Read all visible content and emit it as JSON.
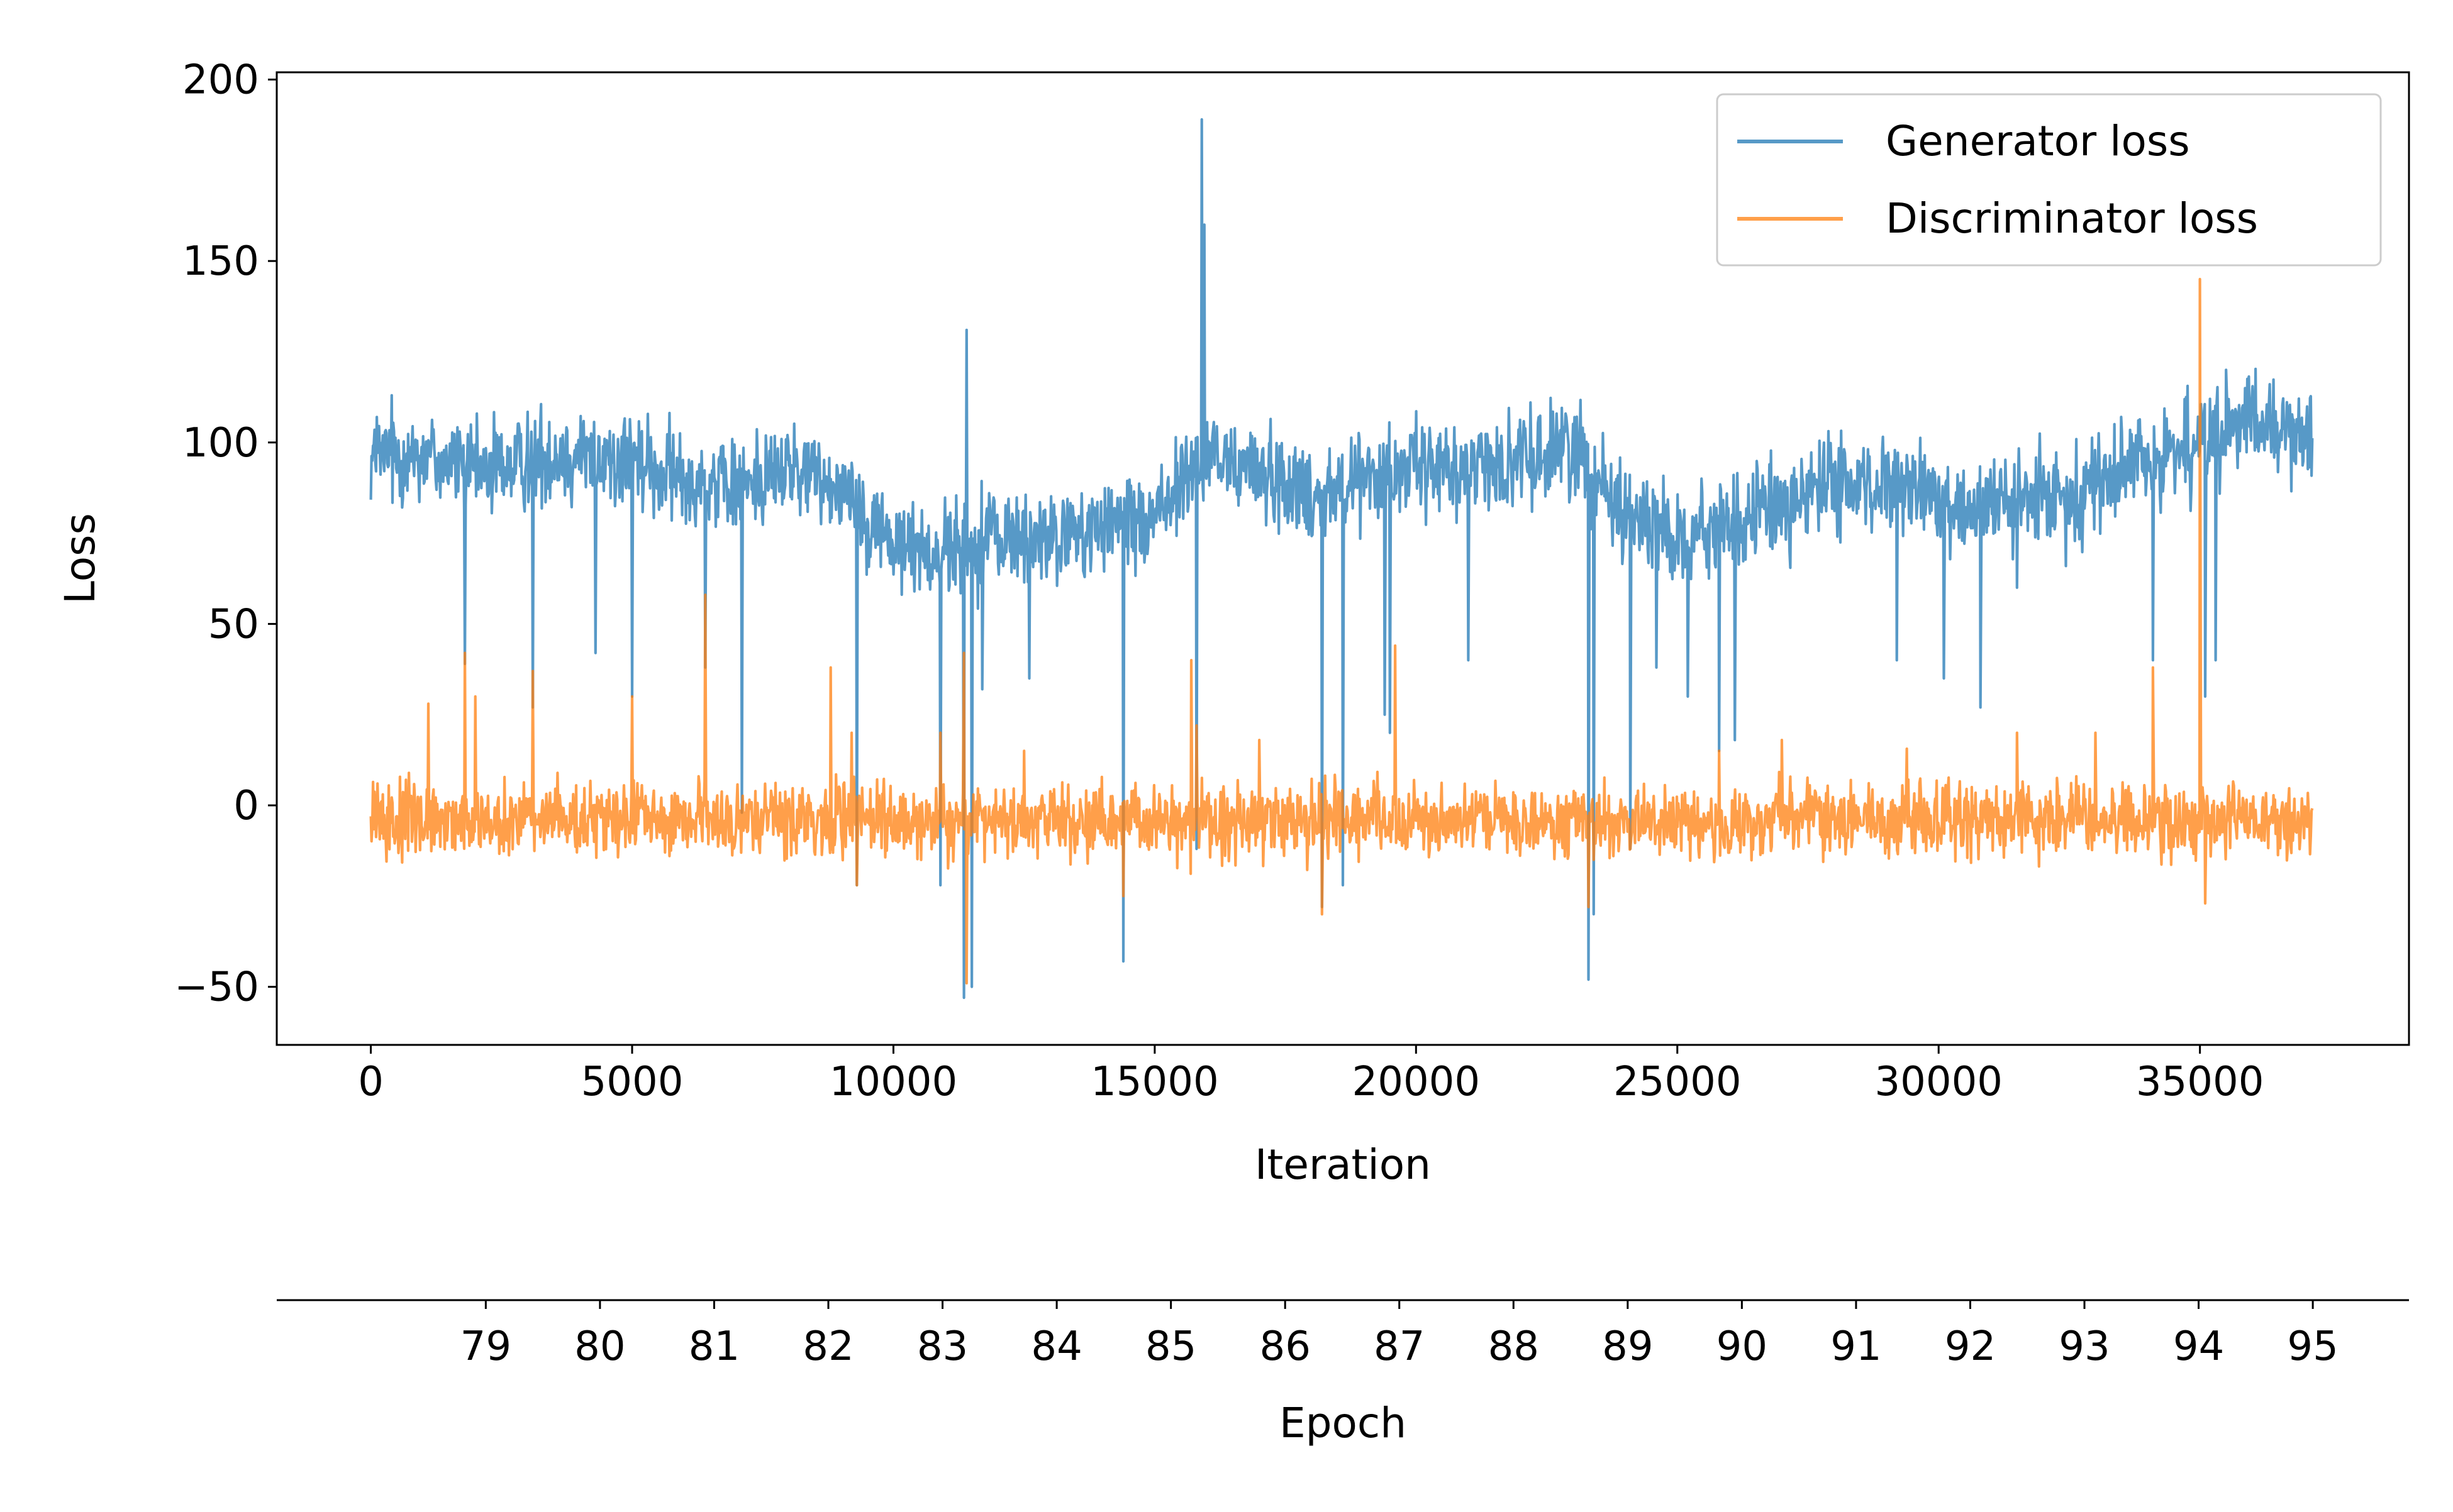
{
  "chart_data": {
    "type": "line",
    "xlabel": "Iteration",
    "ylabel": "Loss",
    "xlim": [
      -1800,
      39000
    ],
    "ylim": [
      -66,
      202
    ],
    "x_ticks": [
      0,
      5000,
      10000,
      15000,
      20000,
      25000,
      30000,
      35000
    ],
    "y_ticks": [
      -50,
      0,
      50,
      100,
      150,
      200
    ],
    "x_tick_labels": [
      "0",
      "5000",
      "10000",
      "15000",
      "20000",
      "25000",
      "30000",
      "35000"
    ],
    "y_tick_labels": [
      "−50",
      "0",
      "50",
      "100",
      "150",
      "200"
    ],
    "grid": false,
    "legend_position": "upper-right",
    "series": [
      {
        "name": "Generator loss",
        "color": "#1f77b4",
        "opacity": 0.75,
        "x_range": [
          0,
          37150
        ],
        "baseline": [
          [
            0,
            96
          ],
          [
            1000,
            97
          ],
          [
            2000,
            92
          ],
          [
            3000,
            95
          ],
          [
            4000,
            97
          ],
          [
            5000,
            94
          ],
          [
            6000,
            90
          ],
          [
            7000,
            88
          ],
          [
            8000,
            93
          ],
          [
            9000,
            88
          ],
          [
            10000,
            72
          ],
          [
            11000,
            70
          ],
          [
            12000,
            74
          ],
          [
            13000,
            73
          ],
          [
            14000,
            76
          ],
          [
            15000,
            80
          ],
          [
            16000,
            96
          ],
          [
            17000,
            92
          ],
          [
            18000,
            86
          ],
          [
            19000,
            90
          ],
          [
            20000,
            93
          ],
          [
            21000,
            93
          ],
          [
            22000,
            95
          ],
          [
            23000,
            100
          ],
          [
            24000,
            80
          ],
          [
            25000,
            75
          ],
          [
            26000,
            76
          ],
          [
            27000,
            83
          ],
          [
            28000,
            88
          ],
          [
            29000,
            88
          ],
          [
            30000,
            84
          ],
          [
            31000,
            82
          ],
          [
            32000,
            84
          ],
          [
            33000,
            89
          ],
          [
            34000,
            95
          ],
          [
            35000,
            100
          ],
          [
            36000,
            105
          ],
          [
            37150,
            102
          ]
        ],
        "noise_amplitude": 8,
        "spikes": [
          [
            15800,
            174
          ],
          [
            15900,
            189
          ],
          [
            15950,
            160
          ],
          [
            11400,
            131
          ],
          [
            34100,
            126
          ],
          [
            35500,
            120
          ],
          [
            1800,
            39
          ],
          [
            3100,
            27
          ],
          [
            4300,
            42
          ],
          [
            5000,
            30
          ],
          [
            6400,
            38
          ],
          [
            7100,
            -2
          ],
          [
            9300,
            -22
          ],
          [
            10900,
            -22
          ],
          [
            11350,
            -53
          ],
          [
            11500,
            -50
          ],
          [
            11700,
            32
          ],
          [
            12600,
            35
          ],
          [
            14400,
            -43
          ],
          [
            15800,
            -12
          ],
          [
            18200,
            -28
          ],
          [
            18600,
            -22
          ],
          [
            19400,
            25
          ],
          [
            19500,
            20
          ],
          [
            21000,
            40
          ],
          [
            23300,
            -48
          ],
          [
            23400,
            -30
          ],
          [
            24100,
            -12
          ],
          [
            24600,
            38
          ],
          [
            25200,
            30
          ],
          [
            25800,
            15
          ],
          [
            26100,
            18
          ],
          [
            29200,
            40
          ],
          [
            30100,
            35
          ],
          [
            30800,
            27
          ],
          [
            31500,
            60
          ],
          [
            34100,
            40
          ],
          [
            35100,
            30
          ],
          [
            35300,
            40
          ]
        ]
      },
      {
        "name": "Discriminator loss",
        "color": "#ff7f0e",
        "opacity": 0.75,
        "x_range": [
          0,
          37150
        ],
        "baseline": [
          [
            0,
            -4
          ],
          [
            37150,
            -4
          ]
        ],
        "noise_amplitude": 6,
        "spikes": [
          [
            1800,
            42
          ],
          [
            2000,
            30
          ],
          [
            1100,
            28
          ],
          [
            3100,
            37
          ],
          [
            5000,
            30
          ],
          [
            6400,
            58
          ],
          [
            8800,
            38
          ],
          [
            9200,
            20
          ],
          [
            11350,
            42
          ],
          [
            11400,
            -49
          ],
          [
            14400,
            -25
          ],
          [
            15700,
            40
          ],
          [
            15800,
            22
          ],
          [
            18200,
            -30
          ],
          [
            19600,
            44
          ],
          [
            23300,
            -28
          ],
          [
            23400,
            -15
          ],
          [
            24100,
            -12
          ],
          [
            25800,
            15
          ],
          [
            33000,
            20
          ],
          [
            34100,
            38
          ],
          [
            35000,
            145
          ],
          [
            35100,
            -27
          ],
          [
            9300,
            -22
          ],
          [
            10900,
            20
          ],
          [
            12500,
            15
          ],
          [
            17000,
            18
          ],
          [
            27000,
            18
          ],
          [
            31500,
            20
          ]
        ]
      }
    ],
    "secondary_x_axis": {
      "label": "Epoch",
      "position": "bottom",
      "ticks": [
        {
          "x": 2200,
          "label": "79"
        },
        {
          "x": 4385,
          "label": "80"
        },
        {
          "x": 6570,
          "label": "81"
        },
        {
          "x": 8755,
          "label": "82"
        },
        {
          "x": 10940,
          "label": "83"
        },
        {
          "x": 13125,
          "label": "84"
        },
        {
          "x": 15310,
          "label": "85"
        },
        {
          "x": 17495,
          "label": "86"
        },
        {
          "x": 19680,
          "label": "87"
        },
        {
          "x": 21865,
          "label": "88"
        },
        {
          "x": 24050,
          "label": "89"
        },
        {
          "x": 26235,
          "label": "90"
        },
        {
          "x": 28420,
          "label": "91"
        },
        {
          "x": 30605,
          "label": "92"
        },
        {
          "x": 32790,
          "label": "93"
        },
        {
          "x": 34975,
          "label": "94"
        },
        {
          "x": 37160,
          "label": "95"
        }
      ]
    }
  }
}
